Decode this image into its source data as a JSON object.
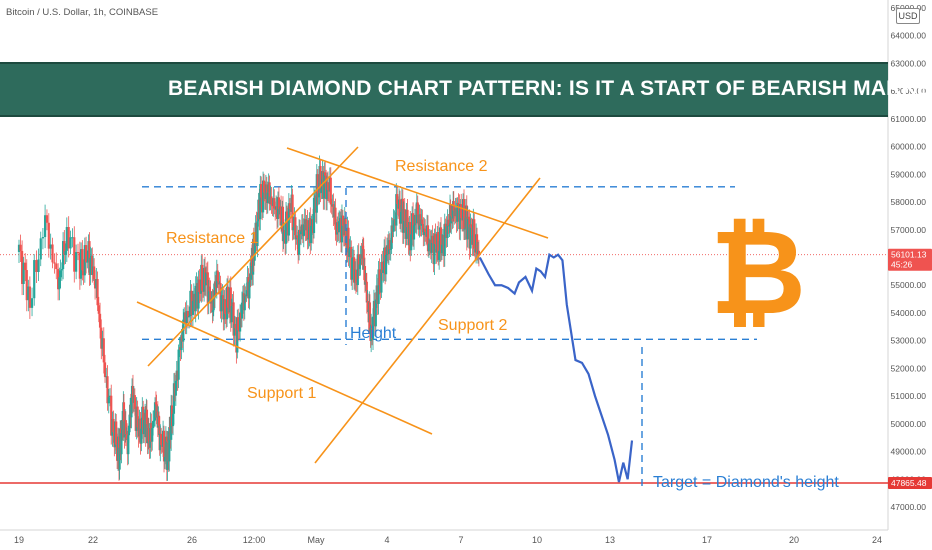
{
  "header": {
    "symbol": "Bitcoin / U.S. Dollar, 1h, COINBASE",
    "currency_button": "USD"
  },
  "banner": {
    "title": "BEARISH DIAMOND CHART PATTERN: IS IT A START OF BEARISH MARKET?"
  },
  "colors": {
    "up": "#26a69a",
    "down": "#ef5350",
    "orange": "#f7931a",
    "blue": "#2962ff",
    "dash_blue": "#2a7fd4",
    "target_red": "#e53935",
    "banner": "#2e6b5c"
  },
  "chart_data": {
    "type": "candlestick",
    "timeframe": "1h",
    "title": "Bitcoin / U.S. Dollar, 1h, COINBASE",
    "ylim": [
      46800,
      65200
    ],
    "y_ticks": [
      "47000.00",
      "48000.00",
      "49000.00",
      "50000.00",
      "51000.00",
      "52000.00",
      "53000.00",
      "54000.00",
      "55000.00",
      "56000.00",
      "57000.00",
      "58000.00",
      "59000.00",
      "60000.00",
      "61000.00",
      "62000.00",
      "63000.00",
      "64000.00",
      "65000.00"
    ],
    "x_ticks": [
      "19",
      "22",
      "26",
      "12:00",
      "May",
      "4",
      "7",
      "10",
      "13",
      "17",
      "20",
      "24"
    ],
    "price_tags": [
      {
        "label": "56101.13",
        "sub": "45:26",
        "value": 56101.13,
        "color": "#ef5350"
      },
      {
        "label": "47865.48",
        "sub": "",
        "value": 47865.48,
        "color": "#e53935"
      }
    ],
    "price_path": [
      [
        19,
        56200
      ],
      [
        19.5,
        54500
      ],
      [
        20.2,
        57300
      ],
      [
        20.8,
        55000
      ],
      [
        21.2,
        56900
      ],
      [
        21.8,
        55600
      ],
      [
        22.2,
        56100
      ],
      [
        22.5,
        55300
      ],
      [
        22.9,
        52100
      ],
      [
        23.3,
        49900
      ],
      [
        23.6,
        48900
      ],
      [
        23.8,
        50200
      ],
      [
        24.0,
        49300
      ],
      [
        24.2,
        51200
      ],
      [
        24.5,
        49600
      ],
      [
        24.8,
        50300
      ],
      [
        25.0,
        49300
      ],
      [
        25.3,
        50600
      ],
      [
        25.5,
        49500
      ],
      [
        25.8,
        48800
      ],
      [
        26.0,
        50000
      ],
      [
        26.3,
        52200
      ],
      [
        26.6,
        53700
      ],
      [
        27.0,
        54400
      ],
      [
        27.3,
        55000
      ],
      [
        27.6,
        55200
      ],
      [
        27.9,
        54200
      ],
      [
        28.1,
        55400
      ],
      [
        28.4,
        54000
      ],
      [
        28.7,
        54500
      ],
      [
        29.0,
        53100
      ],
      [
        29.3,
        54300
      ],
      [
        29.6,
        55200
      ],
      [
        29.8,
        56200
      ],
      [
        30.1,
        58100
      ],
      [
        30.4,
        58500
      ],
      [
        30.7,
        57800
      ],
      [
        31.0,
        57700
      ],
      [
        31.2,
        56900
      ],
      [
        31.5,
        57800
      ],
      [
        31.8,
        56500
      ],
      [
        32.1,
        57300
      ],
      [
        32.4,
        56700
      ],
      [
        32.7,
        58500
      ],
      [
        33.0,
        58800
      ],
      [
        33.3,
        58300
      ],
      [
        33.6,
        57100
      ],
      [
        33.9,
        57200
      ],
      [
        34.2,
        56100
      ],
      [
        34.5,
        55300
      ],
      [
        34.8,
        56300
      ],
      [
        35.0,
        54500
      ],
      [
        35.2,
        53300
      ],
      [
        35.5,
        54800
      ],
      [
        35.8,
        55800
      ],
      [
        36.1,
        56700
      ],
      [
        36.4,
        57900
      ],
      [
        36.7,
        57400
      ],
      [
        37.0,
        56800
      ],
      [
        37.3,
        57500
      ],
      [
        37.6,
        57100
      ],
      [
        37.9,
        56500
      ],
      [
        38.2,
        56300
      ],
      [
        38.5,
        56600
      ],
      [
        38.8,
        57400
      ],
      [
        39.0,
        57600
      ],
      [
        39.3,
        57700
      ],
      [
        39.6,
        57200
      ],
      [
        39.9,
        56700
      ],
      [
        40.2,
        56000
      ]
    ],
    "blue_step": [
      [
        40.2,
        56000
      ],
      [
        40.6,
        55400
      ],
      [
        40.9,
        55000
      ],
      [
        41.2,
        55000
      ],
      [
        41.5,
        54900
      ],
      [
        41.8,
        54700
      ],
      [
        42.0,
        55100
      ],
      [
        42.3,
        55300
      ],
      [
        42.6,
        54800
      ],
      [
        42.8,
        55600
      ],
      [
        43.0,
        55500
      ],
      [
        43.2,
        55300
      ],
      [
        43.4,
        56100
      ],
      [
        43.6,
        56000
      ],
      [
        43.8,
        56100
      ],
      [
        44.0,
        55900
      ],
      [
        44.2,
        54300
      ],
      [
        44.4,
        53300
      ],
      [
        44.6,
        52300
      ],
      [
        44.9,
        52200
      ],
      [
        45.2,
        51800
      ],
      [
        45.5,
        51000
      ],
      [
        45.8,
        50300
      ],
      [
        46.1,
        49600
      ],
      [
        46.4,
        48700
      ],
      [
        46.6,
        47900
      ],
      [
        46.8,
        48600
      ],
      [
        47.0,
        48000
      ],
      [
        47.2,
        49400
      ]
    ],
    "annotations": [
      {
        "text": "Resistance 1",
        "color": "#f7931a"
      },
      {
        "text": "Resistance 2",
        "color": "#f7931a"
      },
      {
        "text": "Support 1",
        "color": "#f7931a"
      },
      {
        "text": "Support 2",
        "color": "#f7931a"
      },
      {
        "text": "Height",
        "color": "#2a7fd4"
      },
      {
        "text": "Target = Diamond's height",
        "color": "#2a7fd4"
      }
    ],
    "trendlines": [
      {
        "name": "Resistance 1",
        "from": [
          21.0,
          52100
        ],
        "to": [
          31.5,
          60000
        ]
      },
      {
        "name": "Resistance 2",
        "from": [
          28.5,
          60000
        ],
        "to": [
          40.1,
          57200
        ]
      },
      {
        "name": "Support 1",
        "from": [
          21.0,
          55300
        ],
        "to": [
          35.5,
          50000
        ]
      },
      {
        "name": "Support 2",
        "from": [
          31.1,
          49000
        ],
        "to": [
          40.0,
          59300
        ]
      }
    ],
    "levels": [
      {
        "name": "diamond-top",
        "value": 58550,
        "from": 21.5,
        "to": 44.5,
        "style": "dashed"
      },
      {
        "name": "diamond-bottom",
        "value": 53050,
        "from": 21.5,
        "to": 46.5,
        "style": "dashed"
      },
      {
        "name": "last-price",
        "value": 56101.13,
        "style": "dotted"
      },
      {
        "name": "target",
        "value": 47865.48,
        "style": "solid"
      }
    ],
    "grid": false,
    "legend": "none"
  }
}
